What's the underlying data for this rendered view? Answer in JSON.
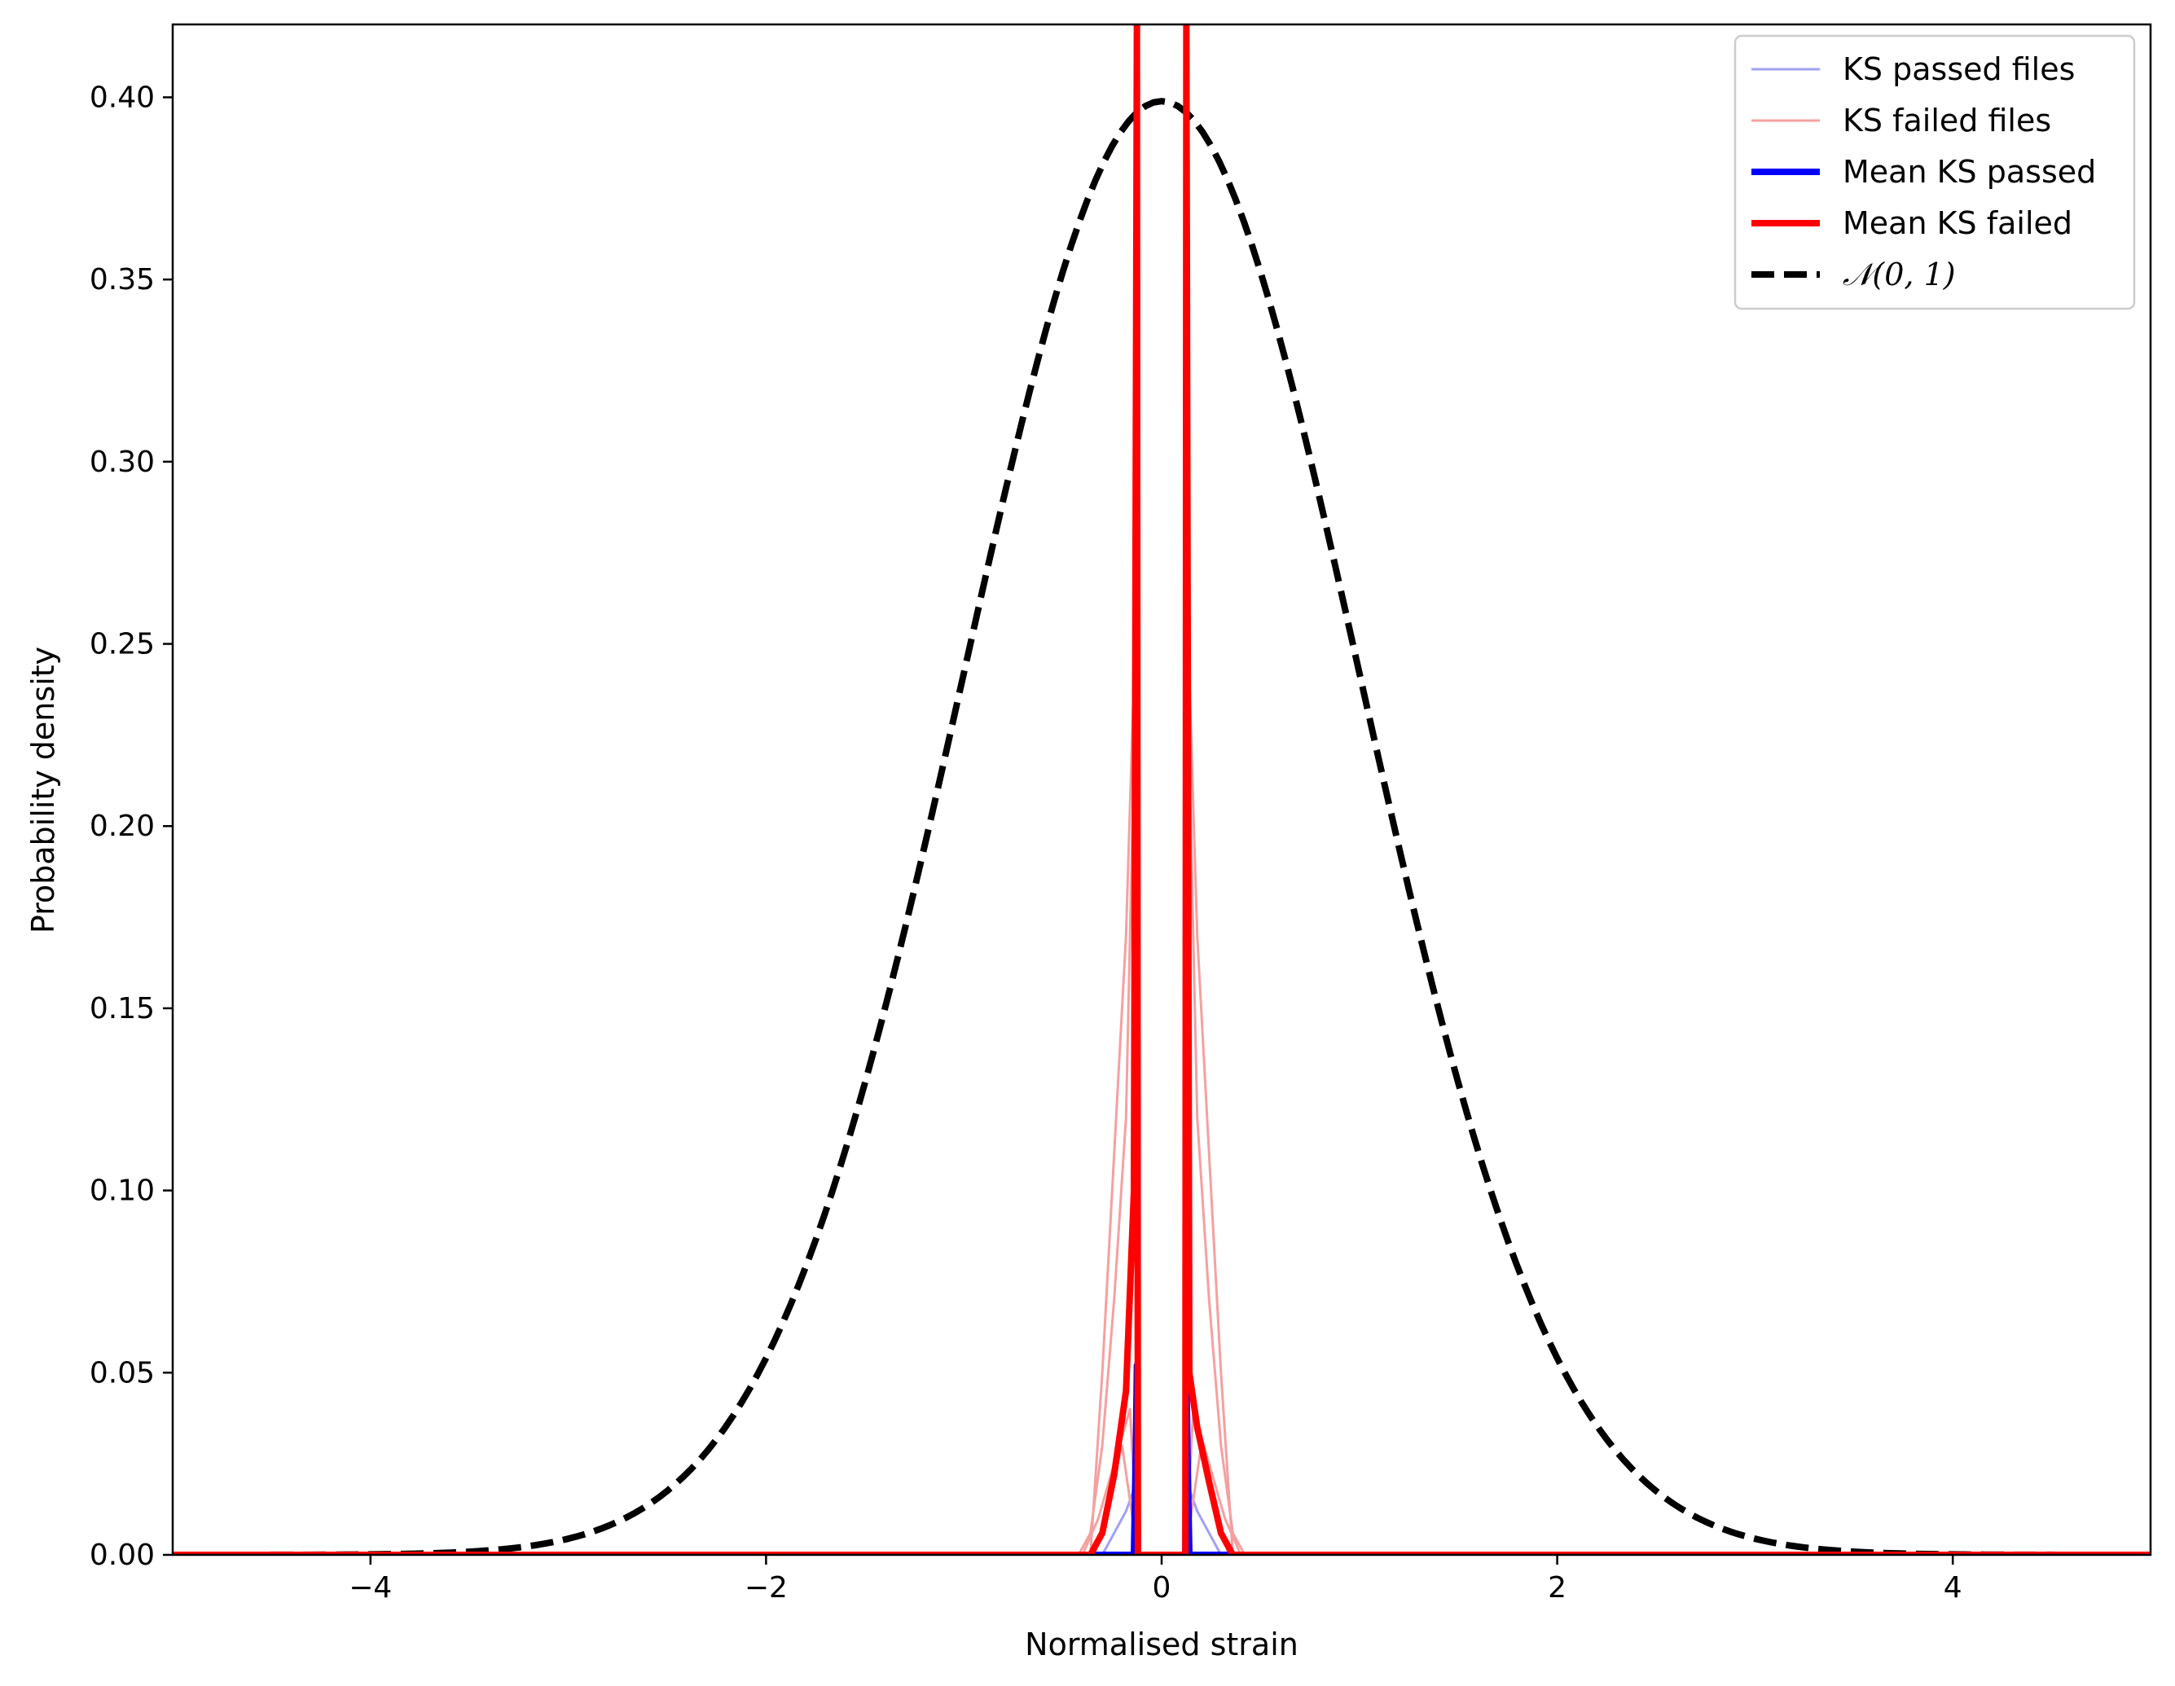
{
  "chart_data": {
    "type": "line",
    "xlabel": "Normalised strain",
    "ylabel": "Probability density",
    "xlim": [
      -5,
      5
    ],
    "ylim": [
      0,
      0.42
    ],
    "x_ticks": [
      -4,
      -2,
      0,
      2,
      4
    ],
    "x_tick_labels": [
      "−4",
      "−2",
      "0",
      "2",
      "4"
    ],
    "y_ticks": [
      0.0,
      0.05,
      0.1,
      0.15,
      0.2,
      0.25,
      0.3,
      0.35,
      0.4
    ],
    "y_tick_labels": [
      "0.00",
      "0.05",
      "0.10",
      "0.15",
      "0.20",
      "0.25",
      "0.30",
      "0.35",
      "0.40"
    ],
    "grid": false,
    "legend_position": "top-right",
    "legend": [
      {
        "label": "KS passed files",
        "color": "#a0a0f5",
        "style": "solid",
        "weight": "thin"
      },
      {
        "label": "KS failed files",
        "color": "#f5a0a0",
        "style": "solid",
        "weight": "thin"
      },
      {
        "label": "Mean KS passed",
        "color": "#0000ff",
        "style": "solid",
        "weight": "thick"
      },
      {
        "label": "Mean KS failed",
        "color": "#ff0000",
        "style": "solid",
        "weight": "thick"
      },
      {
        "label": "𝒩(0, 1)",
        "color": "#000000",
        "style": "dashed",
        "weight": "thick"
      }
    ],
    "series": [
      {
        "key": "ks-failed-file-1",
        "color": "#f5a0a0",
        "role": "failed-file",
        "x": [
          -5.0,
          -0.42,
          -0.36,
          -0.3,
          -0.24,
          -0.18,
          -0.14,
          -0.13,
          -0.125,
          -0.12,
          0.12,
          0.125,
          0.13,
          0.14,
          0.18,
          0.24,
          0.3,
          0.36,
          0.42,
          5.0
        ],
        "y": [
          0.0,
          0.0,
          0.006,
          0.03,
          0.07,
          0.12,
          0.22,
          0.3,
          0.42,
          0.0,
          0.0,
          0.42,
          0.3,
          0.22,
          0.12,
          0.07,
          0.03,
          0.006,
          0.0,
          0.0
        ]
      },
      {
        "key": "ks-failed-file-2",
        "color": "#f5a0a0",
        "role": "failed-file",
        "x": [
          -5.0,
          -0.36,
          -0.3,
          -0.24,
          -0.18,
          -0.135,
          -0.12,
          0.12,
          0.135,
          0.18,
          0.24,
          0.3,
          0.36,
          5.0
        ],
        "y": [
          0.0,
          0.0,
          0.05,
          0.11,
          0.17,
          0.25,
          0.0,
          0.0,
          0.25,
          0.17,
          0.11,
          0.05,
          0.0,
          0.0
        ]
      },
      {
        "key": "ks-failed-file-3",
        "color": "#f5a0a0",
        "role": "failed-file",
        "x": [
          -5.0,
          -0.4,
          -0.32,
          -0.24,
          -0.16,
          -0.12,
          0.12,
          0.16,
          0.24,
          0.32,
          0.4,
          5.0
        ],
        "y": [
          0.0,
          0.0,
          0.01,
          0.025,
          0.04,
          0.0,
          0.0,
          0.04,
          0.025,
          0.01,
          0.0,
          0.0
        ]
      },
      {
        "key": "ks-failed-file-4",
        "color": "#f5a0a0",
        "role": "failed-file",
        "x": [
          -5.0,
          -0.34,
          -0.28,
          -0.2,
          -0.12,
          0.12,
          0.2,
          0.28,
          0.34,
          5.0
        ],
        "y": [
          0.0,
          0.0,
          0.012,
          0.03,
          0.0,
          0.0,
          0.03,
          0.012,
          0.0,
          0.0
        ]
      },
      {
        "key": "ks-passed-file-1",
        "color": "#a0a0f5",
        "role": "passed-file",
        "x": [
          -5.0,
          -0.3,
          -0.24,
          -0.18,
          -0.14,
          -0.12,
          0.12,
          0.14,
          0.18,
          0.24,
          0.3,
          5.0
        ],
        "y": [
          0.0,
          0.0,
          0.006,
          0.012,
          0.018,
          0.0,
          0.0,
          0.018,
          0.012,
          0.006,
          0.0,
          0.0
        ]
      },
      {
        "key": "mean-ks-passed",
        "color": "#0000ff",
        "role": "mean-passed",
        "x": [
          -5.0,
          -0.14,
          -0.13,
          -0.125,
          -0.12,
          0.12,
          0.125,
          0.13,
          0.14,
          5.0
        ],
        "y": [
          0.0,
          0.0,
          0.03,
          0.052,
          0.0,
          0.0,
          0.052,
          0.03,
          0.0,
          0.0
        ]
      },
      {
        "key": "mean-ks-failed",
        "color": "#ff0000",
        "role": "mean-failed",
        "x": [
          -5.0,
          -0.36,
          -0.3,
          -0.24,
          -0.18,
          -0.14,
          -0.125,
          -0.12,
          0.12,
          0.125,
          0.14,
          0.18,
          0.24,
          0.3,
          0.36,
          5.0
        ],
        "y": [
          0.0,
          0.0,
          0.006,
          0.022,
          0.045,
          0.1,
          0.42,
          0.0,
          0.0,
          0.42,
          0.05,
          0.035,
          0.02,
          0.006,
          0.0,
          0.0
        ]
      },
      {
        "key": "standard-normal",
        "color": "#000000",
        "role": "normal",
        "function": "standard-normal-pdf",
        "mean": 0,
        "std": 1
      }
    ]
  }
}
